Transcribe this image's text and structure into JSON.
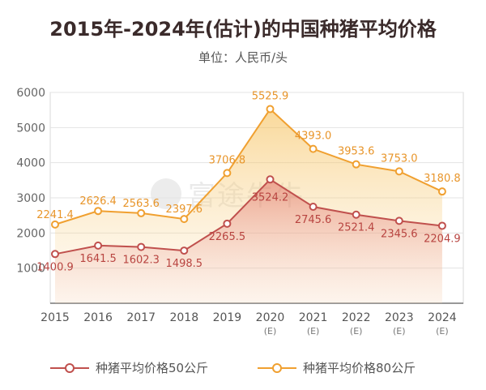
{
  "title": "2015年-2024年(估计)的中国种猪平均价格",
  "subtitle": "单位：人民币/头",
  "watermark": "富途牛牛",
  "chart_data": {
    "type": "line",
    "categories": [
      "2015",
      "2016",
      "2017",
      "2018",
      "2019",
      "2020",
      "2021",
      "2022",
      "2023",
      "2024"
    ],
    "category_notes": [
      "",
      "",
      "",
      "",
      "",
      "(E)",
      "(E)",
      "(E)",
      "(E)",
      "(E)"
    ],
    "series": [
      {
        "name": "种猪平均价格50公斤",
        "values": [
          1400.9,
          1641.5,
          1602.3,
          1498.5,
          2265.5,
          3524.2,
          2745.6,
          2521.4,
          2345.6,
          2204.9
        ],
        "labels": [
          "1400.9",
          "1641.5",
          "1602.3",
          "1498.5",
          "2265.5",
          "3524.2",
          "2745.6",
          "2521.4",
          "2345.6",
          "2204.9"
        ],
        "color": "#c0504d"
      },
      {
        "name": "种猪平均价格80公斤",
        "values": [
          2241.4,
          2626.4,
          2563.6,
          2397.6,
          3706.8,
          5525.9,
          4393.0,
          3953.6,
          3753.0,
          3180.8
        ],
        "labels": [
          "2241.4",
          "2626.4",
          "2563.6",
          "2397.6",
          "3706.8",
          "5525.9",
          "4393.0",
          "3953.6",
          "3753.0",
          "3180.8"
        ],
        "color": "#f0a030"
      }
    ],
    "yticks": [
      "1000",
      "2000",
      "3000",
      "4000",
      "5000",
      "6000"
    ],
    "ylim": [
      0,
      6000
    ],
    "grid": true,
    "legend": "bottom"
  }
}
